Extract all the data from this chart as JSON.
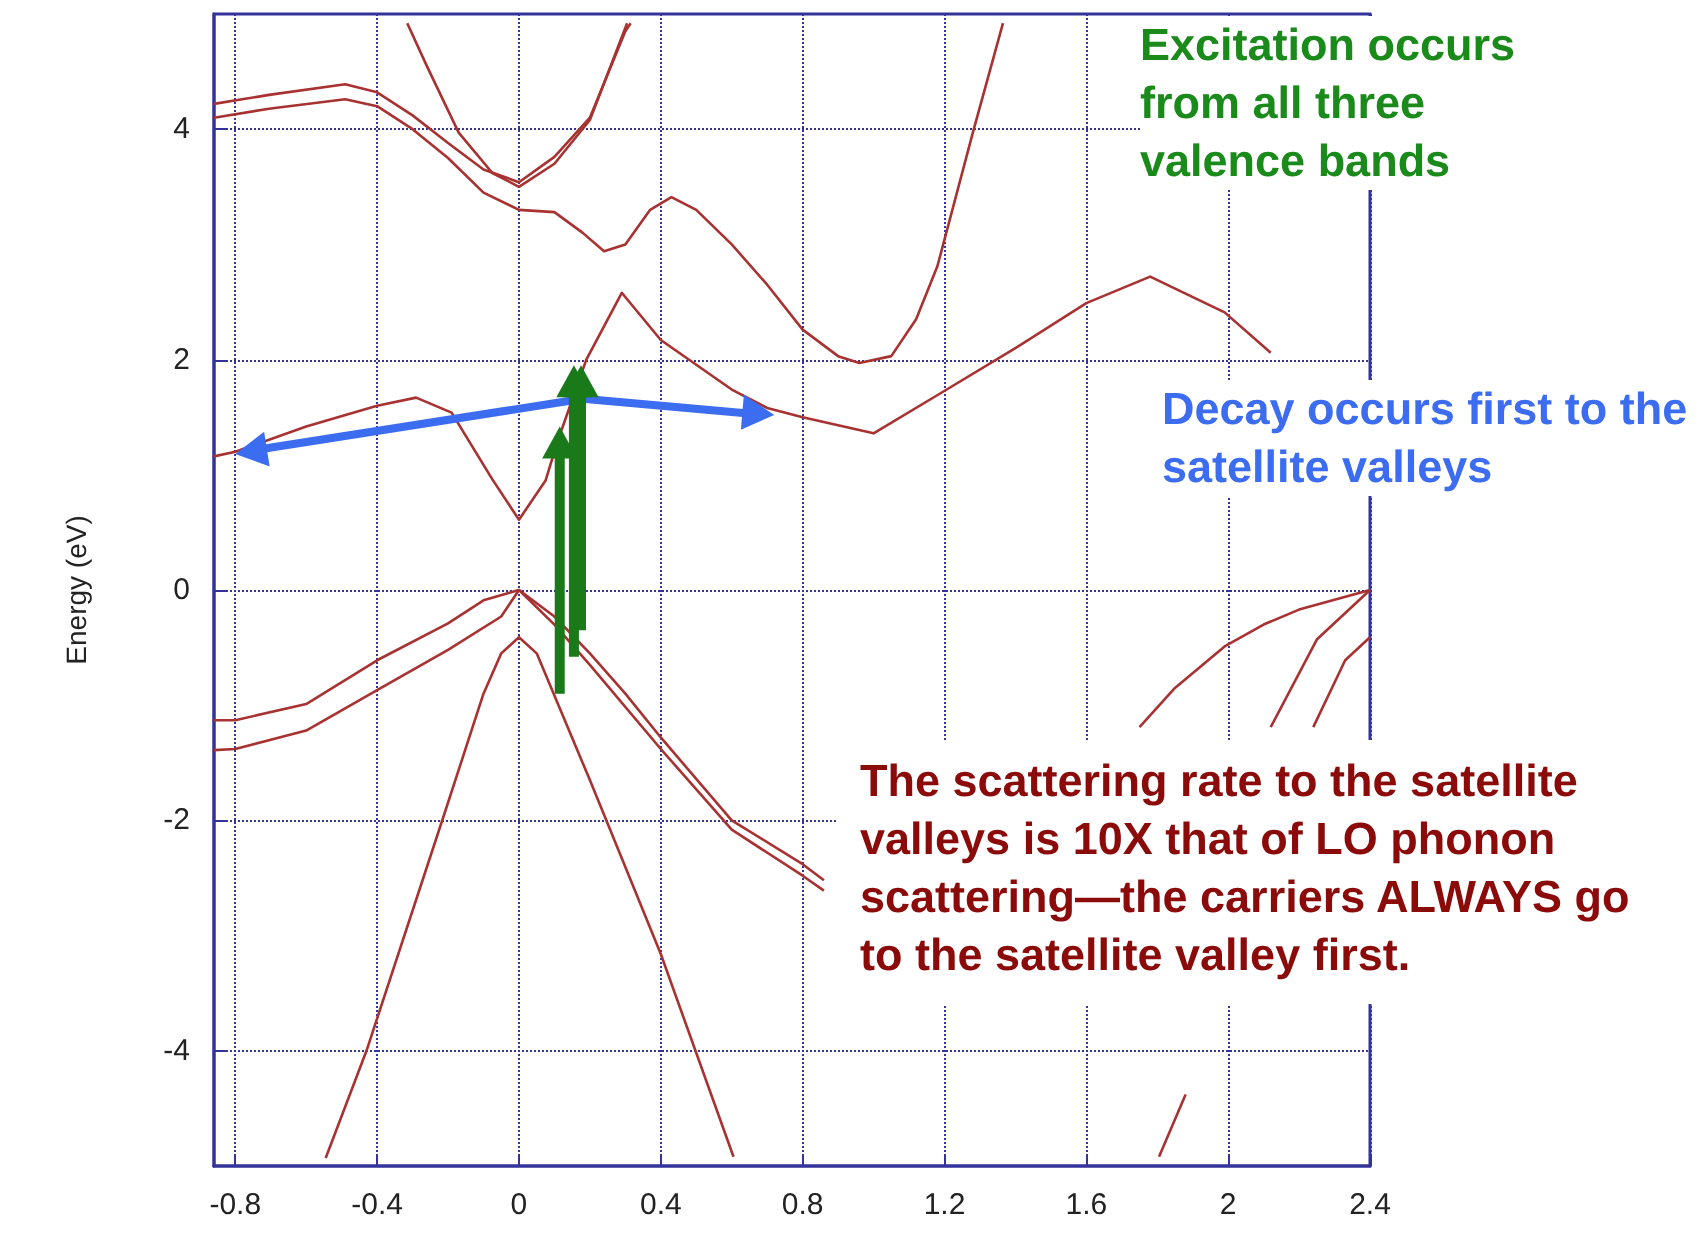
{
  "chart_data": {
    "type": "line",
    "ylabel": "Energy (eV)",
    "xlim": [
      -0.86,
      2.4
    ],
    "xticks": [
      -0.8,
      -0.4,
      0,
      0.4,
      0.8,
      1.2,
      1.6,
      2,
      2.4
    ],
    "ylim": [
      -5,
      5
    ],
    "yticks": [
      -4,
      -2,
      0,
      2,
      4
    ],
    "grid": true,
    "marker": "none",
    "line_style": "solid",
    "annotations": [
      "Excitation occurs from all three valence bands",
      "Decay occurs first to the satellite valleys",
      "The scattering rate to the satellite valleys is 10X that of LO phonon scattering—the carriers ALWAYS go to the satellite valley first."
    ],
    "series": [
      {
        "color": "#a83232",
        "x": [
          -0.86,
          -0.8,
          -0.6,
          -0.4,
          -0.29,
          -0.19,
          -0.075,
          0,
          0.075,
          0.11,
          0.19,
          0.29,
          0.4,
          0.6,
          0.7,
          0.8,
          1.0,
          1.19,
          1.4,
          1.6,
          1.78,
          1.99,
          2.12
        ],
        "values": [
          1.16,
          1.2,
          1.42,
          1.6,
          1.67,
          1.54,
          0.96,
          0.61,
          0.95,
          1.3,
          2.0,
          2.58,
          2.17,
          1.74,
          1.58,
          1.5,
          1.36,
          1.71,
          2.1,
          2.49,
          2.72,
          2.41,
          2.06
        ]
      },
      {
        "color": "#a83232",
        "x": [
          -0.86,
          -0.7,
          -0.49,
          -0.4,
          -0.3,
          -0.2,
          -0.1,
          0,
          0.1,
          0.2,
          0.3,
          0.315
        ],
        "values": [
          4.22,
          4.3,
          4.39,
          4.32,
          4.12,
          3.88,
          3.65,
          3.54,
          3.76,
          4.1,
          4.85,
          4.92
        ]
      },
      {
        "color": "#a83232",
        "x": [
          -0.315,
          -0.26,
          -0.17,
          -0.075,
          0,
          0.1,
          0.2,
          0.305
        ],
        "values": [
          4.92,
          4.55,
          3.97,
          3.62,
          3.5,
          3.7,
          4.08,
          4.92
        ]
      },
      {
        "color": "#a83232",
        "x": [
          -0.86,
          -0.7,
          -0.49,
          -0.4,
          -0.3,
          -0.2,
          -0.1,
          0,
          0.1,
          0.18,
          0.24,
          0.3,
          0.37,
          0.43,
          0.5,
          0.6,
          0.7,
          0.8,
          0.9,
          0.96,
          1.05,
          1.12,
          1.18,
          1.28,
          1.365
        ],
        "values": [
          4.1,
          4.18,
          4.26,
          4.2,
          4.0,
          3.75,
          3.45,
          3.3,
          3.28,
          3.1,
          2.94,
          3.0,
          3.3,
          3.41,
          3.3,
          3.0,
          2.65,
          2.26,
          2.03,
          1.97,
          2.03,
          2.35,
          2.81,
          3.97,
          4.92
        ]
      },
      {
        "color": "#a83232",
        "x": [
          -0.86,
          -0.8,
          -0.6,
          -0.4,
          -0.2,
          -0.1,
          0,
          0.1,
          0.2,
          0.3,
          0.4,
          0.6,
          0.8,
          0.86
        ],
        "values": [
          -1.13,
          -1.13,
          -0.99,
          -0.61,
          -0.29,
          -0.09,
          0,
          -0.23,
          -0.55,
          -0.9,
          -1.28,
          -2.0,
          -2.38,
          -2.52
        ]
      },
      {
        "color": "#a83232",
        "x": [
          -0.86,
          -0.8,
          -0.6,
          -0.4,
          -0.2,
          -0.05,
          0,
          0.1,
          0.2,
          0.4,
          0.6,
          0.8,
          0.86
        ],
        "values": [
          -1.39,
          -1.38,
          -1.22,
          -0.87,
          -0.52,
          -0.23,
          0,
          -0.3,
          -0.65,
          -1.38,
          -2.08,
          -2.48,
          -2.61
        ]
      },
      {
        "color": "#a83232",
        "x": [
          -0.545,
          -0.43,
          -0.21,
          -0.1,
          -0.05,
          0,
          0.05,
          0.2,
          0.4,
          0.605
        ],
        "values": [
          -4.93,
          -4.0,
          -1.94,
          -0.9,
          -0.55,
          -0.41,
          -0.55,
          -1.65,
          -3.16,
          -4.92
        ]
      },
      {
        "color": "#a83232",
        "x": [
          1.75,
          1.85,
          1.99,
          2.1,
          2.2,
          2.4
        ],
        "values": [
          -1.19,
          -0.85,
          -0.49,
          -0.3,
          -0.17,
          0
        ]
      },
      {
        "color": "#a83232",
        "x": [
          2.12,
          2.25,
          2.4
        ],
        "values": [
          -1.19,
          -0.43,
          0
        ]
      },
      {
        "color": "#a83232",
        "x": [
          2.24,
          2.33,
          2.4
        ],
        "values": [
          -1.19,
          -0.61,
          -0.41
        ]
      },
      {
        "color": "#a83232",
        "x": [
          1.805,
          1.88
        ],
        "values": [
          -4.92,
          -4.38
        ]
      }
    ]
  }
}
